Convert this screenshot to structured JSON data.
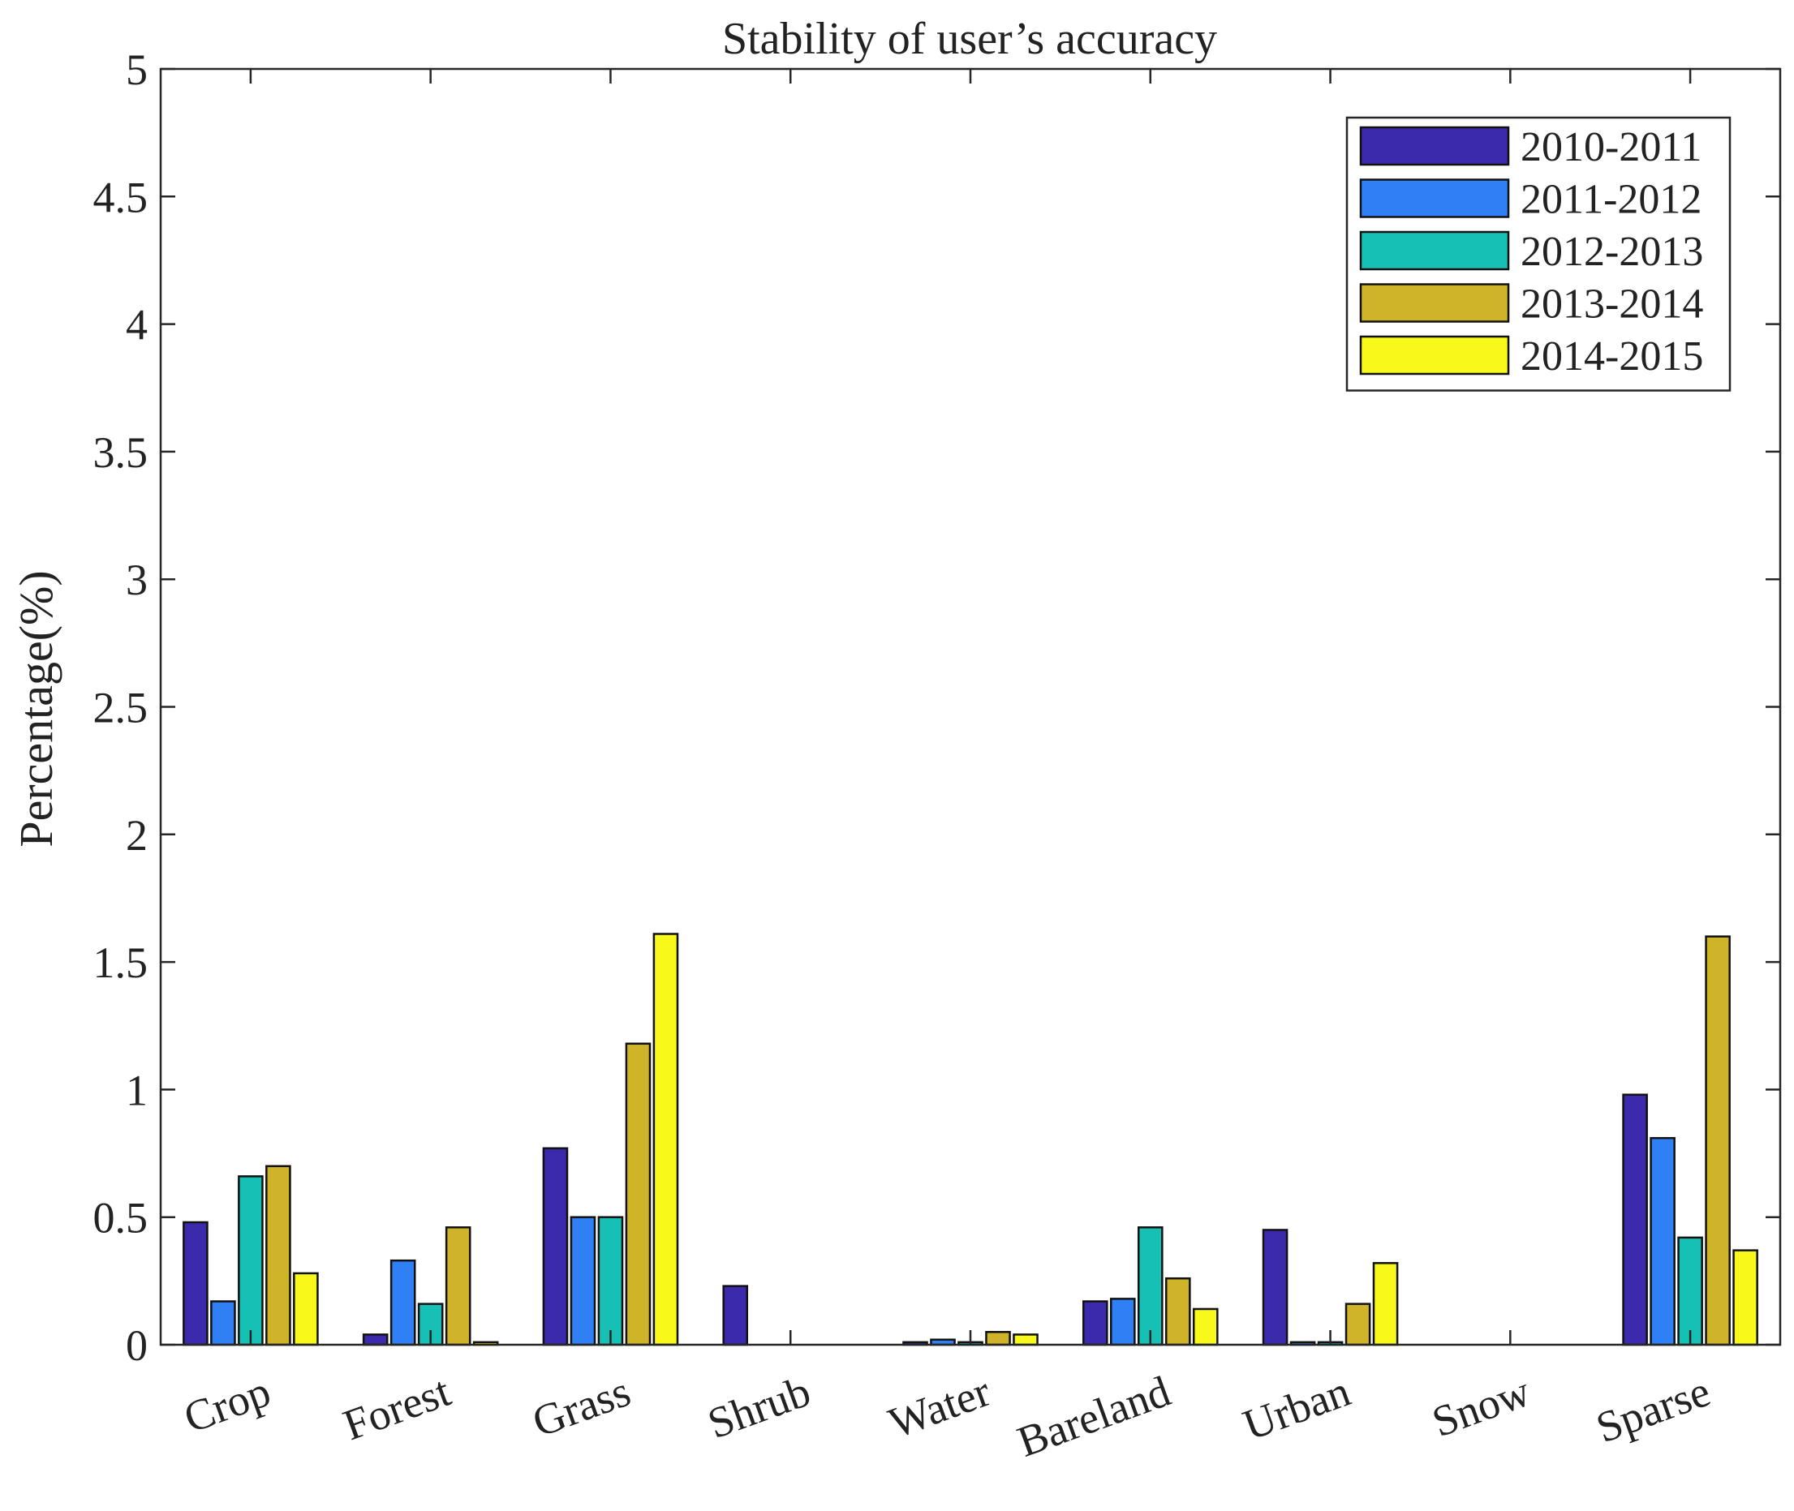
{
  "chart_data": {
    "type": "bar",
    "title": "Stability of user’s accuracy",
    "xlabel": "",
    "ylabel": "Percentage(%)",
    "ylim": [
      0,
      5
    ],
    "yticks": [
      0,
      0.5,
      1,
      1.5,
      2,
      2.5,
      3,
      3.5,
      4,
      4.5,
      5
    ],
    "ytick_labels": [
      "0",
      "0.5",
      "1",
      "1.5",
      "2",
      "2.5",
      "3",
      "3.5",
      "4",
      "4.5",
      "5"
    ],
    "grid": false,
    "legend_position": "top-right",
    "categories": [
      "Crop",
      "Forest",
      "Grass",
      "Shrub",
      "Water",
      "Bareland",
      "Urban",
      "Snow",
      "Sparse"
    ],
    "series": [
      {
        "name": "2010-2011",
        "color": "#3B2AAB",
        "values": [
          0.48,
          0.04,
          0.77,
          0.23,
          0.01,
          0.17,
          0.45,
          0,
          0.98
        ]
      },
      {
        "name": "2011-2012",
        "color": "#2F80F5",
        "values": [
          0.17,
          0.33,
          0.5,
          0,
          0.02,
          0.18,
          0.01,
          0,
          0.81
        ]
      },
      {
        "name": "2012-2013",
        "color": "#16C0B4",
        "values": [
          0.66,
          0.16,
          0.5,
          0,
          0.01,
          0.46,
          0.01,
          0,
          0.42
        ]
      },
      {
        "name": "2013-2014",
        "color": "#CFB42A",
        "values": [
          0.7,
          0.46,
          1.18,
          0,
          0.05,
          0.26,
          0.16,
          0,
          1.6
        ]
      },
      {
        "name": "2014-2015",
        "color": "#F8F81A",
        "values": [
          0.28,
          0.01,
          1.61,
          0,
          0.04,
          0.14,
          0.32,
          0,
          0.37
        ]
      }
    ]
  }
}
